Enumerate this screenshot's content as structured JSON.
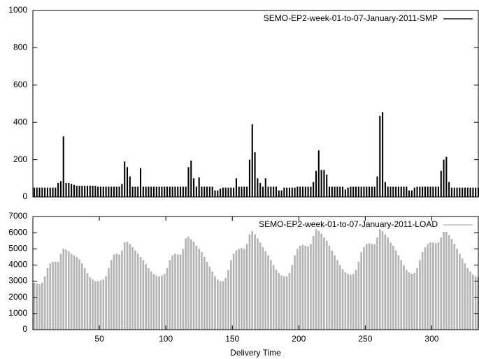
{
  "chart_data": [
    {
      "type": "bar",
      "xlim": [
        0,
        335
      ],
      "ylim": [
        0,
        1000
      ],
      "yticks": [
        0,
        200,
        400,
        600,
        800,
        1000
      ],
      "x": [
        1,
        3,
        5,
        7,
        9,
        11,
        13,
        15,
        17,
        19,
        21,
        23,
        25,
        27,
        29,
        31,
        33,
        35,
        37,
        39,
        41,
        43,
        45,
        47,
        49,
        51,
        53,
        55,
        57,
        59,
        61,
        63,
        65,
        67,
        69,
        71,
        73,
        75,
        77,
        79,
        81,
        83,
        85,
        87,
        89,
        91,
        93,
        95,
        97,
        99,
        101,
        103,
        105,
        107,
        109,
        111,
        113,
        115,
        117,
        119,
        121,
        123,
        125,
        127,
        129,
        131,
        133,
        135,
        137,
        139,
        141,
        143,
        145,
        147,
        149,
        151,
        153,
        155,
        157,
        159,
        161,
        163,
        165,
        167,
        169,
        171,
        173,
        175,
        177,
        179,
        181,
        183,
        185,
        187,
        189,
        191,
        193,
        195,
        197,
        199,
        201,
        203,
        205,
        207,
        209,
        211,
        213,
        215,
        217,
        219,
        221,
        223,
        225,
        227,
        229,
        231,
        233,
        235,
        237,
        239,
        241,
        243,
        245,
        247,
        249,
        251,
        253,
        255,
        257,
        259,
        261,
        263,
        265,
        267,
        269,
        271,
        273,
        275,
        277,
        279,
        281,
        283,
        285,
        287,
        289,
        291,
        293,
        295,
        297,
        299,
        301,
        303,
        305,
        307,
        309,
        311,
        313,
        315,
        317,
        319,
        321,
        323,
        325,
        327,
        329,
        331,
        333,
        335
      ],
      "series": [
        {
          "name": "SEMO-EP2-week-01-to-07-January-2011-SMP",
          "color": "#000000",
          "values": [
            50,
            50,
            50,
            50,
            50,
            50,
            50,
            50,
            50,
            75,
            85,
            325,
            75,
            75,
            70,
            65,
            60,
            60,
            60,
            60,
            60,
            60,
            60,
            60,
            55,
            55,
            55,
            55,
            55,
            55,
            55,
            55,
            55,
            70,
            190,
            160,
            110,
            55,
            55,
            55,
            155,
            55,
            55,
            55,
            55,
            55,
            55,
            55,
            55,
            55,
            55,
            55,
            55,
            55,
            55,
            55,
            55,
            55,
            160,
            195,
            100,
            55,
            105,
            55,
            55,
            55,
            55,
            55,
            35,
            35,
            45,
            50,
            50,
            50,
            50,
            50,
            100,
            55,
            55,
            55,
            55,
            200,
            390,
            240,
            100,
            75,
            55,
            100,
            55,
            55,
            55,
            55,
            35,
            35,
            50,
            50,
            50,
            50,
            50,
            55,
            55,
            55,
            55,
            55,
            55,
            80,
            140,
            250,
            145,
            145,
            120,
            55,
            55,
            55,
            55,
            55,
            55,
            40,
            50,
            55,
            55,
            55,
            55,
            55,
            55,
            55,
            55,
            55,
            55,
            110,
            435,
            455,
            80,
            55,
            55,
            55,
            55,
            55,
            55,
            55,
            55,
            35,
            35,
            50,
            55,
            55,
            55,
            55,
            55,
            55,
            55,
            55,
            55,
            140,
            200,
            215,
            80,
            50,
            50,
            50,
            50,
            50,
            50,
            50,
            50,
            50,
            50,
            50
          ]
        }
      ]
    },
    {
      "type": "bar",
      "xlim": [
        0,
        335
      ],
      "ylim": [
        0,
        7000
      ],
      "yticks": [
        0,
        1000,
        2000,
        3000,
        4000,
        5000,
        6000,
        7000
      ],
      "xticks": [
        50,
        100,
        150,
        200,
        250,
        300
      ],
      "xlabel": "Delivery Time",
      "x": [
        1,
        3,
        5,
        7,
        9,
        11,
        13,
        15,
        17,
        19,
        21,
        23,
        25,
        27,
        29,
        31,
        33,
        35,
        37,
        39,
        41,
        43,
        45,
        47,
        49,
        51,
        53,
        55,
        57,
        59,
        61,
        63,
        65,
        67,
        69,
        71,
        73,
        75,
        77,
        79,
        81,
        83,
        85,
        87,
        89,
        91,
        93,
        95,
        97,
        99,
        101,
        103,
        105,
        107,
        109,
        111,
        113,
        115,
        117,
        119,
        121,
        123,
        125,
        127,
        129,
        131,
        133,
        135,
        137,
        139,
        141,
        143,
        145,
        147,
        149,
        151,
        153,
        155,
        157,
        159,
        161,
        163,
        165,
        167,
        169,
        171,
        173,
        175,
        177,
        179,
        181,
        183,
        185,
        187,
        189,
        191,
        193,
        195,
        197,
        199,
        201,
        203,
        205,
        207,
        209,
        211,
        213,
        215,
        217,
        219,
        221,
        223,
        225,
        227,
        229,
        231,
        233,
        235,
        237,
        239,
        241,
        243,
        245,
        247,
        249,
        251,
        253,
        255,
        257,
        259,
        261,
        263,
        265,
        267,
        269,
        271,
        273,
        275,
        277,
        279,
        281,
        283,
        285,
        287,
        289,
        291,
        293,
        295,
        297,
        299,
        301,
        303,
        305,
        307,
        309,
        311,
        313,
        315,
        317,
        319,
        321,
        323,
        325,
        327,
        329,
        331,
        333,
        335
      ],
      "series": [
        {
          "name": "SEMO-EP2-week-01-to-07-January-2011-LOAD",
          "color": "#b4b4b4",
          "values": [
            2900,
            2850,
            2800,
            2900,
            3300,
            3800,
            4100,
            4200,
            4200,
            4200,
            4700,
            5000,
            4950,
            4850,
            4700,
            4600,
            4500,
            4350,
            4100,
            3800,
            3500,
            3250,
            3100,
            3000,
            3000,
            3050,
            3100,
            3300,
            3800,
            4300,
            4650,
            4700,
            4650,
            4900,
            5400,
            5450,
            5300,
            5100,
            4900,
            4700,
            4500,
            4300,
            4050,
            3800,
            3600,
            3450,
            3350,
            3300,
            3350,
            3450,
            3800,
            4300,
            4600,
            4700,
            4650,
            4650,
            5000,
            5650,
            5750,
            5600,
            5450,
            5200,
            5000,
            4800,
            4500,
            4200,
            3900,
            3600,
            3300,
            3100,
            3000,
            3000,
            3200,
            3700,
            4300,
            4700,
            4900,
            5000,
            5050,
            5000,
            5300,
            5900,
            6100,
            5900,
            5650,
            5400,
            5100,
            4850,
            4600,
            4300,
            4000,
            3700,
            3500,
            3350,
            3300,
            3300,
            3500,
            4000,
            4600,
            5000,
            5200,
            5250,
            5200,
            5150,
            5300,
            5800,
            6200,
            6100,
            5950,
            5700,
            5500,
            5200,
            4900,
            4600,
            4300,
            4000,
            3750,
            3550,
            3450,
            3400,
            3450,
            3700,
            4200,
            4800,
            5100,
            5300,
            5350,
            5300,
            5300,
            5700,
            6200,
            6100,
            5900,
            5700,
            5400,
            5200,
            4900,
            4600,
            4300,
            4000,
            3700,
            3550,
            3450,
            3500,
            3800,
            4300,
            4800,
            5100,
            5300,
            5400,
            5400,
            5350,
            5400,
            5700,
            6050,
            6050,
            5850,
            5600,
            5300,
            5000,
            4700,
            4400,
            4100,
            3800,
            3600,
            3400,
            3300,
            3250
          ]
        }
      ]
    }
  ]
}
